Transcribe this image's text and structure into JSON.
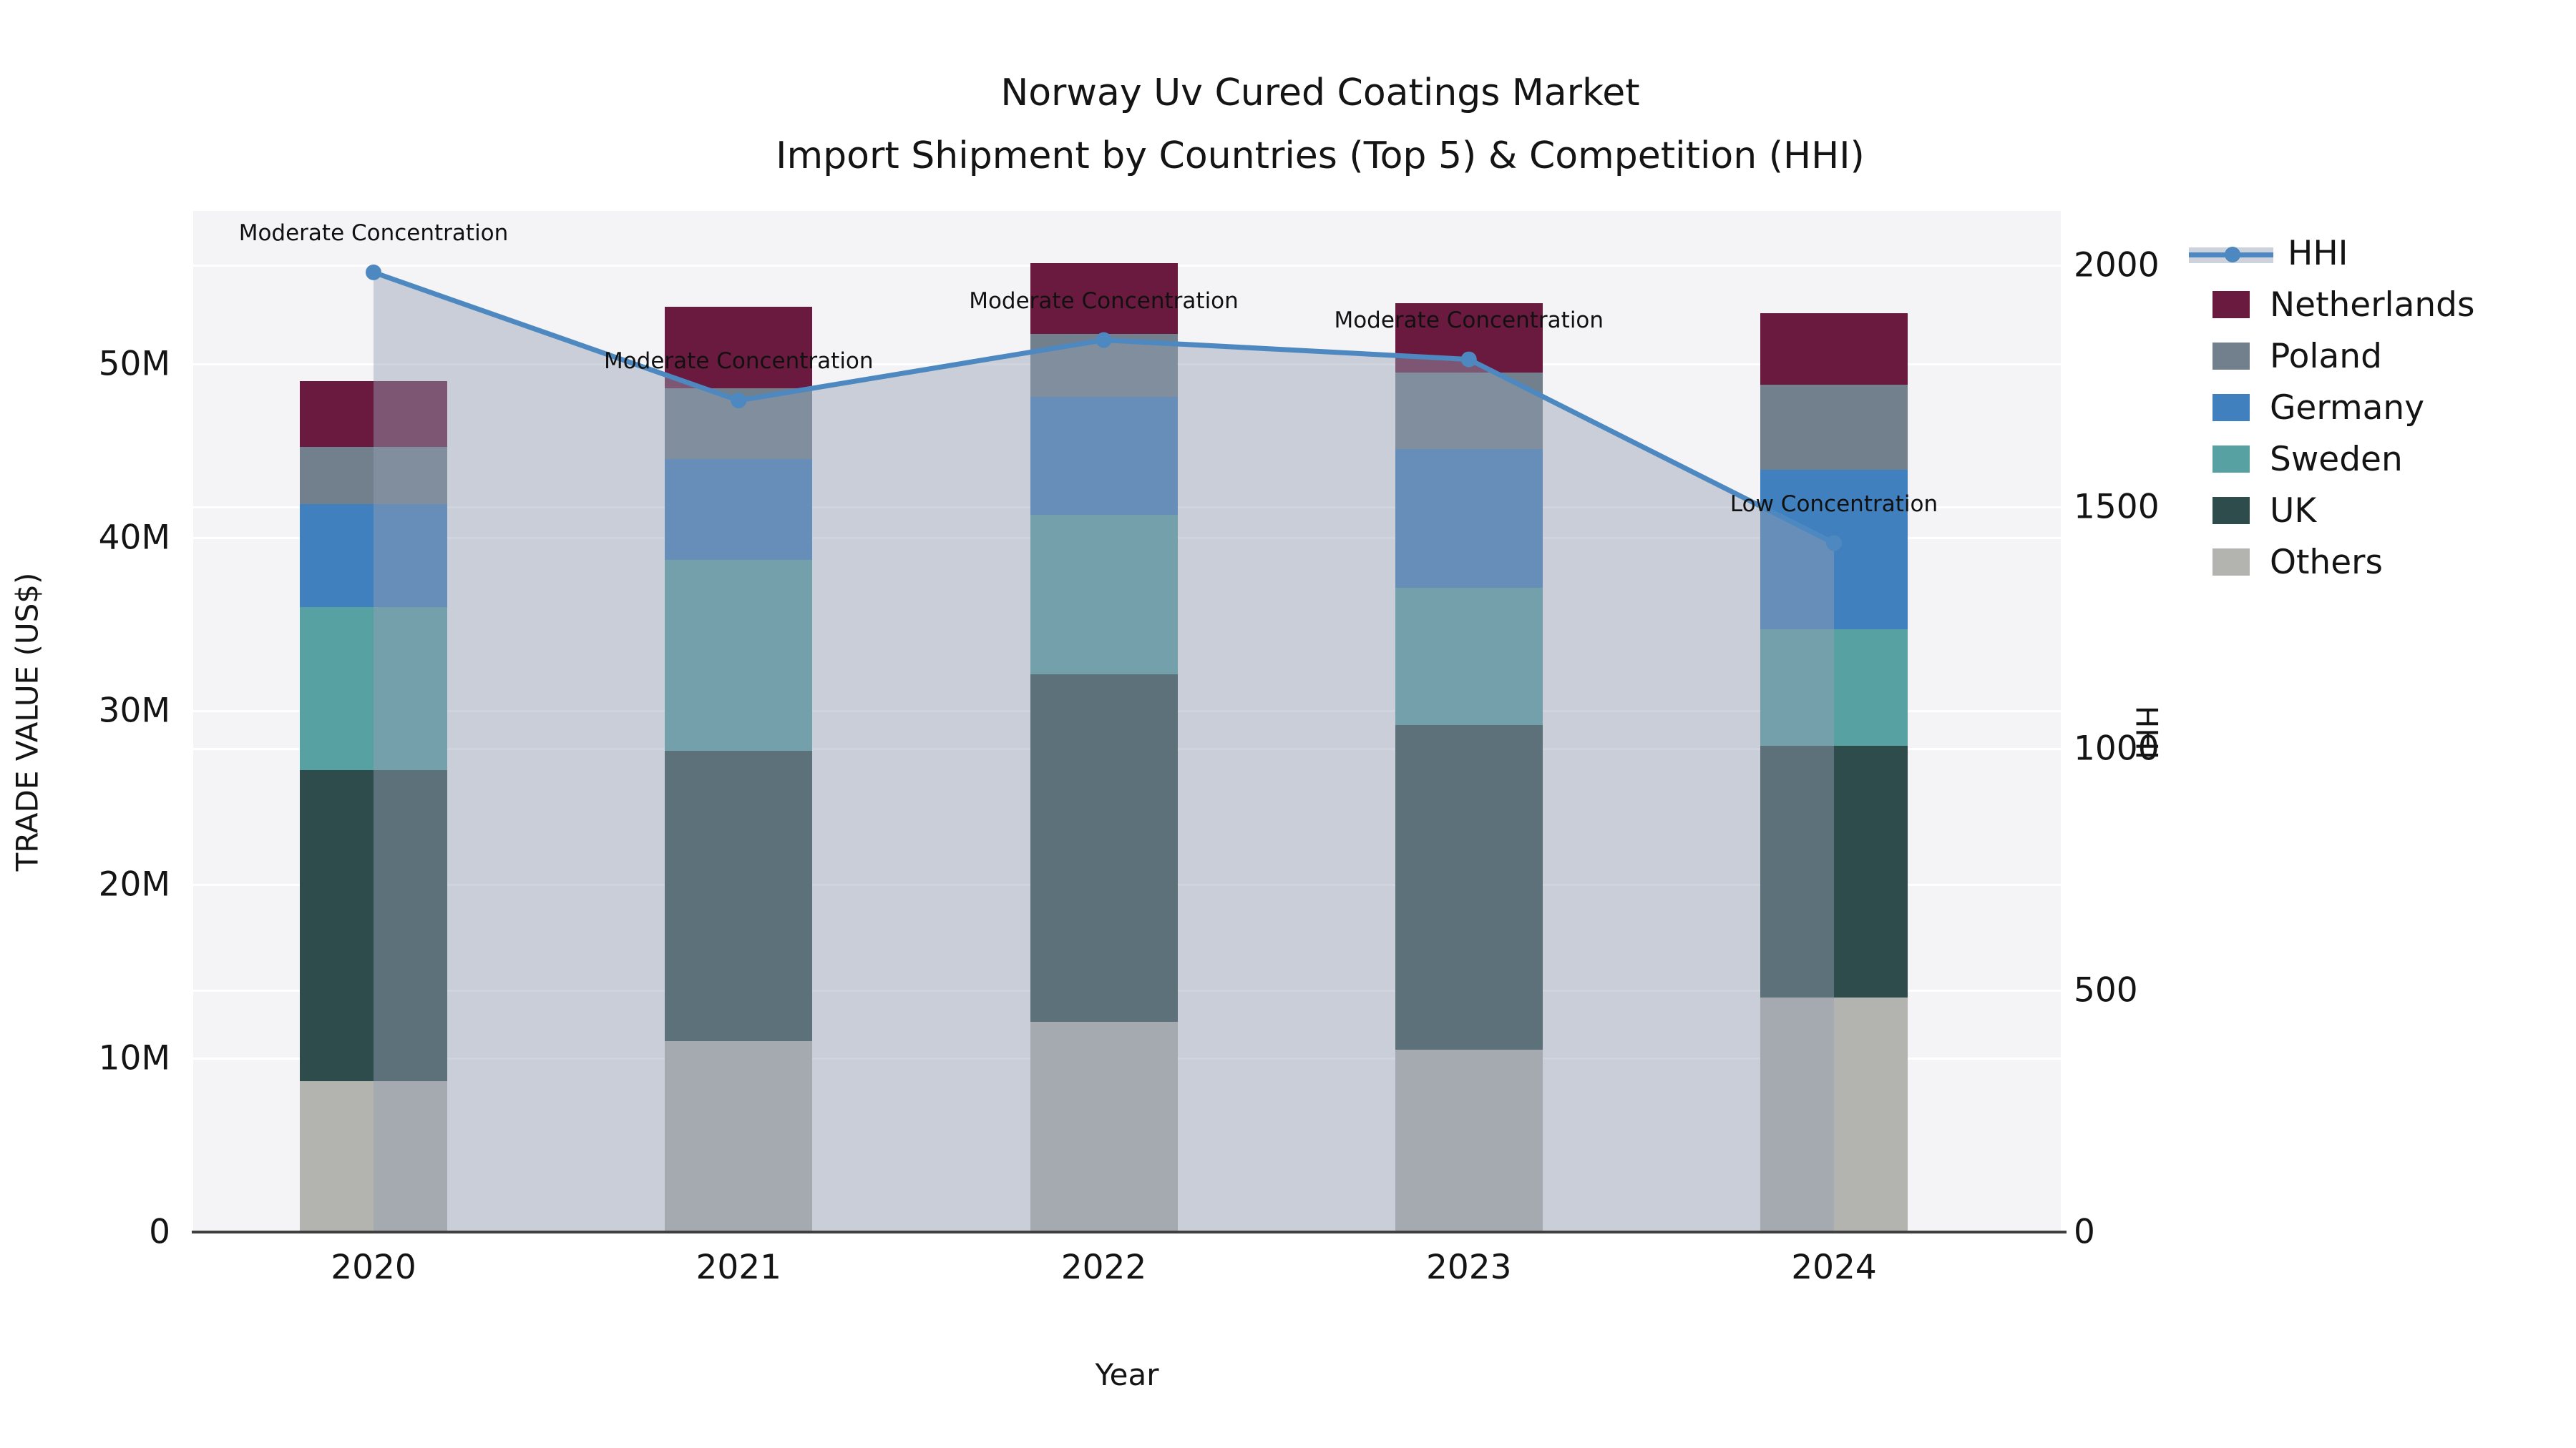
{
  "title": {
    "line1": "Norway Uv Cured Coatings Market",
    "line2": "Import Shipment by Countries (Top 5) & Competition (HHI)"
  },
  "axes": {
    "y_left_label": "TRADE VALUE (US$)",
    "y_right_label": "HHI",
    "x_label": "Year",
    "y_left_ticks": [
      {
        "label": "0",
        "value": 0
      },
      {
        "label": "10M",
        "value": 10
      },
      {
        "label": "20M",
        "value": 20
      },
      {
        "label": "30M",
        "value": 30
      },
      {
        "label": "40M",
        "value": 40
      },
      {
        "label": "50M",
        "value": 50
      }
    ],
    "y_right_ticks": [
      {
        "label": "0",
        "value": 0
      },
      {
        "label": "500",
        "value": 500
      },
      {
        "label": "1000",
        "value": 1000
      },
      {
        "label": "1500",
        "value": 1500
      },
      {
        "label": "2000",
        "value": 2000
      }
    ]
  },
  "legend": {
    "items": [
      "HHI",
      "Netherlands",
      "Poland",
      "Germany",
      "Sweden",
      "UK",
      "Others"
    ]
  },
  "chart_data": {
    "type": "bar",
    "subtype": "stacked-bars-with-line",
    "categories": [
      "2020",
      "2021",
      "2022",
      "2023",
      "2024"
    ],
    "series": [
      {
        "name": "Others",
        "color": "#b3b3b0",
        "values": [
          8.7,
          11.0,
          12.1,
          10.5,
          13.5
        ]
      },
      {
        "name": "UK",
        "color": "#2e4c4b",
        "values": [
          17.9,
          16.7,
          20.0,
          18.7,
          14.5
        ]
      },
      {
        "name": "Sweden",
        "color": "#58a1a3",
        "values": [
          9.4,
          11.0,
          9.2,
          7.9,
          6.7
        ]
      },
      {
        "name": "Germany",
        "color": "#4080be",
        "values": [
          5.9,
          5.8,
          6.8,
          8.0,
          9.2
        ]
      },
      {
        "name": "Poland",
        "color": "#72808d",
        "values": [
          3.3,
          4.1,
          3.6,
          4.4,
          4.9
        ]
      },
      {
        "name": "Netherlands",
        "color": "#6b1a3f",
        "values": [
          3.8,
          4.7,
          4.1,
          4.0,
          4.1
        ]
      }
    ],
    "totals_musd": [
      49.0,
      53.3,
      55.8,
      53.5,
      52.9
    ],
    "line": {
      "name": "HHI",
      "color": "#4d89c0",
      "area_fill": "rgba(148,160,180,0.45)",
      "values": [
        1985,
        1720,
        1845,
        1805,
        1425
      ]
    },
    "annotations": [
      {
        "year": "2020",
        "text": "Moderate Concentration"
      },
      {
        "year": "2021",
        "text": "Moderate Concentration"
      },
      {
        "year": "2022",
        "text": "Moderate Concentration"
      },
      {
        "year": "2023",
        "text": "Moderate Concentration"
      },
      {
        "year": "2024",
        "text": "Low Concentration"
      }
    ],
    "title": "Norway Uv Cured Coatings Market Import Shipment by Countries (Top 5) & Competition (HHI)",
    "xlabel": "Year",
    "ylabel": "TRADE VALUE (US$)",
    "y2label": "HHI",
    "ylim_left_musd": [
      0,
      58.8
    ],
    "ylim_right_hhi": [
      0,
      2112
    ],
    "grid": "horizontal-both-axes",
    "legend_position": "right"
  }
}
